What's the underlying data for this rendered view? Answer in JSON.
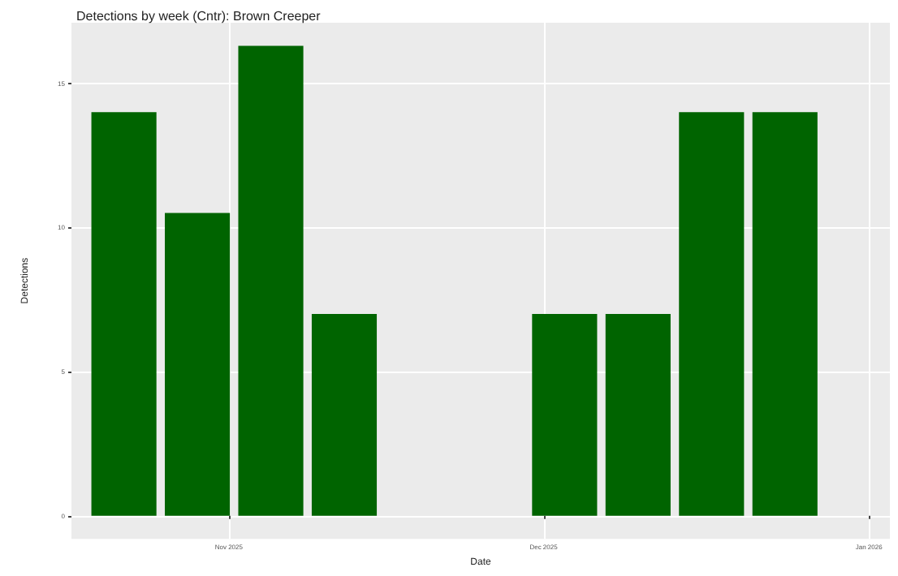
{
  "chart_data": {
    "type": "bar",
    "title": "Detections by week (Cntr): Brown Creeper",
    "xlabel": "Date",
    "ylabel": "Detections",
    "x": [
      "2025-10-22",
      "2025-10-29",
      "2025-11-05",
      "2025-11-12",
      "2025-12-03",
      "2025-12-10",
      "2025-12-17",
      "2025-12-24"
    ],
    "values": [
      14,
      10.5,
      16.3,
      7,
      7,
      7,
      14,
      14
    ],
    "color": "#006400",
    "xlim": [
      "2025-10-17",
      "2026-01-03"
    ],
    "xticks": [
      {
        "value": "2025-11-01",
        "label": "Nov 2025"
      },
      {
        "value": "2025-12-01",
        "label": "Dec 2025"
      },
      {
        "value": "2026-01-01",
        "label": "Jan 2026"
      }
    ],
    "ylim": [
      -0.8,
      17.1
    ],
    "yticks": [
      0,
      5,
      10,
      15
    ],
    "grid": true
  }
}
